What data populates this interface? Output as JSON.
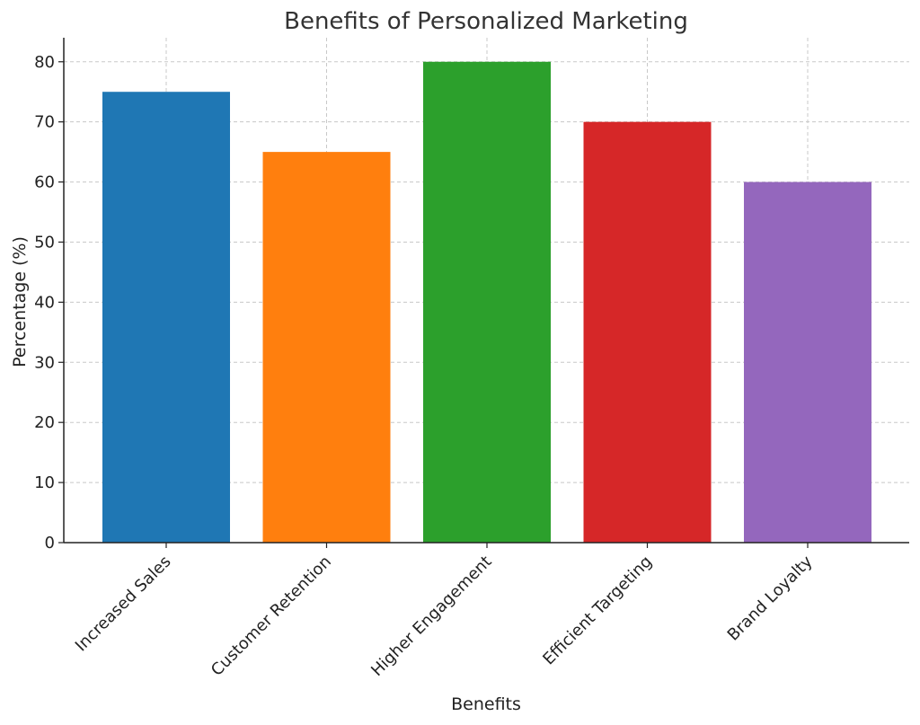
{
  "chart_data": {
    "type": "bar",
    "title": "Benefits of Personalized Marketing",
    "xlabel": "Benefits",
    "ylabel": "Percentage (%)",
    "categories": [
      "Increased Sales",
      "Customer Retention",
      "Higher Engagement",
      "Efficient Targeting",
      "Brand Loyalty"
    ],
    "values": [
      75,
      65,
      80,
      70,
      60
    ],
    "colors": [
      "#1f77b4",
      "#ff7f0e",
      "#2ca02c",
      "#d62728",
      "#9467bd"
    ],
    "ylim": [
      0,
      84
    ],
    "yticks": [
      0,
      10,
      20,
      30,
      40,
      50,
      60,
      70,
      80
    ],
    "grid": true,
    "legend": "none"
  }
}
